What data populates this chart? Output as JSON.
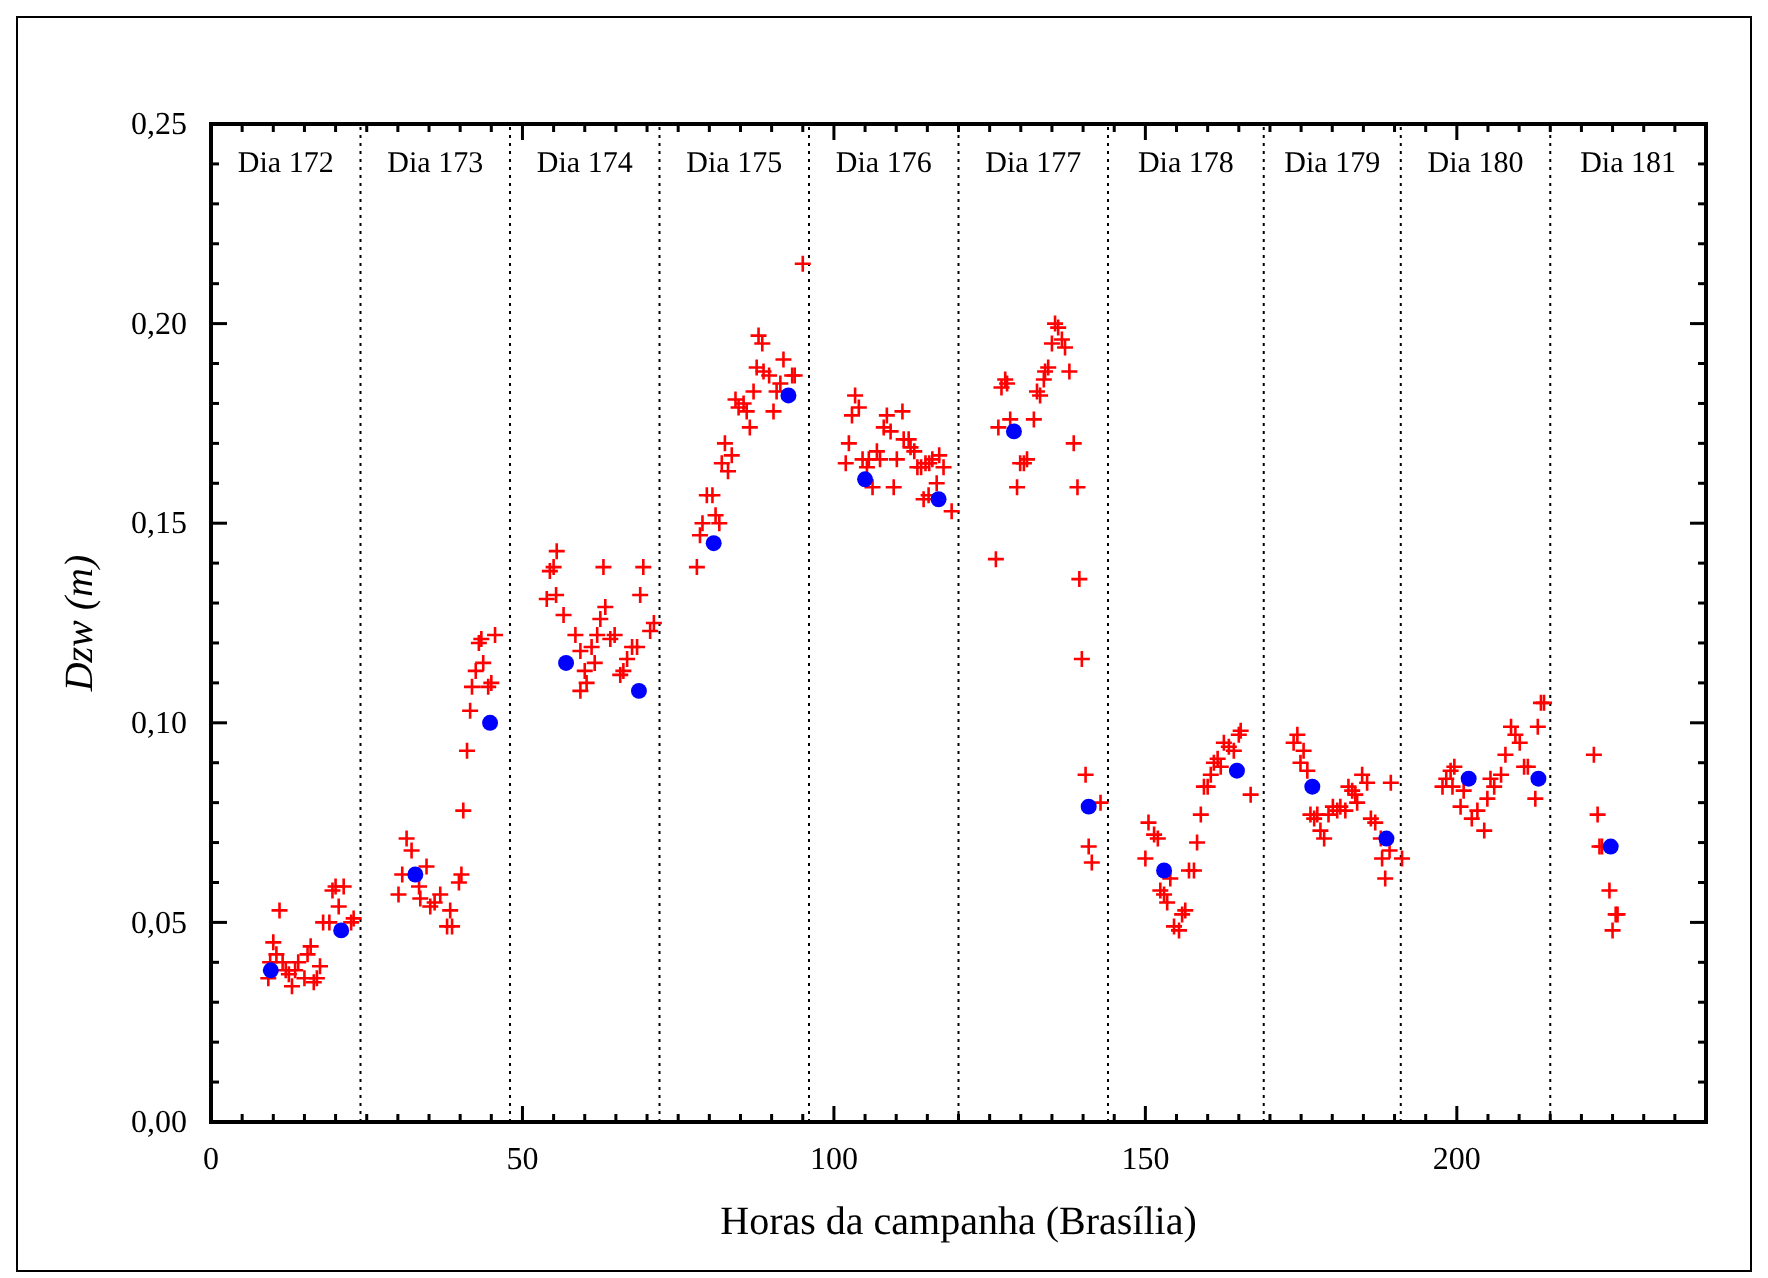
{
  "chart_data": {
    "type": "scatter",
    "xlabel": "Horas da campanha (Brasília)",
    "ylabel": "Dzw (m)",
    "xlim": [
      0,
      240
    ],
    "ylim": [
      0,
      0.25
    ],
    "xticks": [
      0,
      {
        "value": 5,
        "label": null
      },
      {
        "value": 10,
        "label": null
      },
      {
        "value": 15,
        "label": null
      },
      {
        "value": 20,
        "label": null
      },
      {
        "value": 25,
        "label": null
      },
      {
        "value": 30,
        "label": null
      },
      {
        "value": 35,
        "label": null
      },
      {
        "value": 40,
        "label": null
      },
      {
        "value": 45,
        "label": null
      },
      50,
      {
        "value": 55,
        "label": null
      },
      {
        "value": 60,
        "label": null
      },
      {
        "value": 65,
        "label": null
      },
      {
        "value": 70,
        "label": null
      },
      {
        "value": 75,
        "label": null
      },
      {
        "value": 80,
        "label": null
      },
      {
        "value": 85,
        "label": null
      },
      {
        "value": 90,
        "label": null
      },
      {
        "value": 95,
        "label": null
      },
      100,
      {
        "value": 105,
        "label": null
      },
      {
        "value": 110,
        "label": null
      },
      {
        "value": 115,
        "label": null
      },
      {
        "value": 120,
        "label": null
      },
      {
        "value": 125,
        "label": null
      },
      {
        "value": 130,
        "label": null
      },
      {
        "value": 135,
        "label": null
      },
      {
        "value": 140,
        "label": null
      },
      {
        "value": 145,
        "label": null
      },
      150,
      {
        "value": 155,
        "label": null
      },
      {
        "value": 160,
        "label": null
      },
      {
        "value": 165,
        "label": null
      },
      {
        "value": 170,
        "label": null
      },
      {
        "value": 175,
        "label": null
      },
      {
        "value": 180,
        "label": null
      },
      {
        "value": 185,
        "label": null
      },
      {
        "value": 190,
        "label": null
      },
      {
        "value": 195,
        "label": null
      },
      200,
      {
        "value": 205,
        "label": null
      },
      {
        "value": 210,
        "label": null
      },
      {
        "value": 215,
        "label": null
      },
      {
        "value": 220,
        "label": null
      },
      {
        "value": 225,
        "label": null
      },
      {
        "value": 230,
        "label": null
      },
      {
        "value": 235,
        "label": null
      },
      {
        "value": 240,
        "label": null
      }
    ],
    "yticks": [
      {
        "value": 0,
        "label": "0,00"
      },
      {
        "value": 0.01,
        "label": null
      },
      {
        "value": 0.02,
        "label": null
      },
      {
        "value": 0.03,
        "label": null
      },
      {
        "value": 0.04,
        "label": null
      },
      {
        "value": 0.05,
        "label": "0,05"
      },
      {
        "value": 0.06,
        "label": null
      },
      {
        "value": 0.07,
        "label": null
      },
      {
        "value": 0.08,
        "label": null
      },
      {
        "value": 0.09,
        "label": null
      },
      {
        "value": 0.1,
        "label": "0,10"
      },
      {
        "value": 0.11,
        "label": null
      },
      {
        "value": 0.12,
        "label": null
      },
      {
        "value": 0.13,
        "label": null
      },
      {
        "value": 0.14,
        "label": null
      },
      {
        "value": 0.15,
        "label": "0,15"
      },
      {
        "value": 0.16,
        "label": null
      },
      {
        "value": 0.17,
        "label": null
      },
      {
        "value": 0.18,
        "label": null
      },
      {
        "value": 0.19,
        "label": null
      },
      {
        "value": 0.2,
        "label": "0,20"
      },
      {
        "value": 0.21,
        "label": null
      },
      {
        "value": 0.22,
        "label": null
      },
      {
        "value": 0.23,
        "label": null
      },
      {
        "value": 0.24,
        "label": null
      },
      {
        "value": 0.25,
        "label": "0,25"
      }
    ],
    "grid": false,
    "ref_lines": [
      {
        "axis": "x",
        "value": 24,
        "line_style": "dotted"
      },
      {
        "axis": "x",
        "value": 48,
        "line_style": "dotted"
      },
      {
        "axis": "x",
        "value": 72,
        "line_style": "dotted"
      },
      {
        "axis": "x",
        "value": 96,
        "line_style": "dotted"
      },
      {
        "axis": "x",
        "value": 120,
        "line_style": "dotted"
      },
      {
        "axis": "x",
        "value": 144,
        "line_style": "dotted"
      },
      {
        "axis": "x",
        "value": 169,
        "line_style": "dotted"
      },
      {
        "axis": "x",
        "value": 191,
        "line_style": "dotted"
      },
      {
        "axis": "x",
        "value": 215,
        "line_style": "dotted"
      }
    ],
    "annotations": [
      "Dia 172",
      "Dia 173",
      "Dia 174",
      "Dia 175",
      "Dia 176",
      "Dia 177",
      "Dia 178",
      "Dia 179",
      "Dia 180",
      "Dia 181"
    ],
    "series": [
      {
        "color": "#ff0000",
        "marker": "cross",
        "x": [
          9.2,
          9.5,
          10,
          10.5,
          11,
          11.5,
          12,
          12.5,
          13,
          13.5,
          14,
          15,
          15.5,
          16,
          16.5,
          17,
          17.5,
          18,
          19,
          19.5,
          20,
          20.5,
          21.3,
          22.9,
          22.5,
          30.1,
          30.7,
          31.4,
          32.2,
          33.4,
          33.6,
          34.6,
          35.2,
          35.9,
          36.8,
          37.9,
          38.4,
          38.7,
          39.8,
          40.2,
          40.5,
          41.1,
          41.6,
          41.9,
          42.5,
          43,
          43.4,
          43.7,
          44.5,
          45,
          45.6,
          53.9,
          54.4,
          55,
          55.4,
          55.5,
          56.6,
          58.5,
          59.3,
          59.3,
          60,
          60.3,
          61.1,
          61.6,
          62,
          62.5,
          63,
          63.3,
          64.1,
          64.8,
          65.7,
          66.2,
          66.8,
          67.6,
          68.4,
          68.9,
          69.4,
          70.5,
          71.1,
          78,
          78.5,
          78.9,
          79.6,
          80.5,
          81,
          81.6,
          82,
          82.5,
          83,
          83.6,
          84.2,
          84.7,
          85.5,
          86,
          86.5,
          87.1,
          87.6,
          87.9,
          88.5,
          88.7,
          89.6,
          90.3,
          90.8,
          91.4,
          91.9,
          93.3,
          93.7,
          95,
          101.9,
          102.4,
          102.9,
          103.4,
          104,
          104.6,
          105.3,
          105.6,
          106.2,
          106.9,
          107.4,
          108,
          108.5,
          109.1,
          109.6,
          110.1,
          111,
          111.2,
          112,
          112.3,
          112.9,
          113.4,
          114,
          114.4,
          114.7,
          115.2,
          115.3,
          115.8,
          116.5,
          116.9,
          117.6,
          118.9,
          126,
          126.4,
          126.9,
          127.5,
          127.8,
          128.3,
          129.4,
          129.9,
          130.5,
          131,
          132.1,
          132.6,
          133.1,
          133.7,
          133.9,
          134.4,
          135,
          135.5,
          136,
          136.6,
          137.1,
          137.8,
          138.5,
          139.1,
          139.4,
          139.8,
          140.4,
          140.9,
          141.4,
          142.8,
          150,
          150.5,
          151.4,
          152,
          152.4,
          153,
          153.5,
          154,
          154.6,
          155.4,
          155.9,
          156.4,
          157,
          157.8,
          158.3,
          158.9,
          159.4,
          160,
          160.5,
          161,
          161.6,
          162.1,
          162.6,
          163.4,
          164.2,
          165,
          165.3,
          166.9,
          173.8,
          174.4,
          174.9,
          175.4,
          176,
          176.5,
          177.1,
          177.6,
          178.1,
          178.7,
          179.4,
          180.1,
          180.8,
          181.3,
          182.1,
          182.6,
          183.2,
          183.7,
          184,
          184.8,
          185.6,
          186.2,
          186.9,
          187.8,
          188,
          188.5,
          189.2,
          189.4,
          191.2,
          197.7,
          198.3,
          199,
          199.3,
          199.6,
          200.6,
          201.1,
          202.4,
          203.3,
          204.4,
          204.9,
          205.4,
          206,
          207.1,
          207.8,
          208.7,
          209.4,
          210.1,
          210.8,
          211.4,
          212.6,
          213,
          213.5,
          214,
          222,
          222.6,
          222.9,
          223.3,
          224.5,
          225,
          225.5,
          225.8
        ],
        "values": [
          0.036,
          0.04,
          0.045,
          0.042,
          0.053,
          0.04,
          0.038,
          0.037,
          0.034,
          0.038,
          0.04,
          0.036,
          0.042,
          0.044,
          0.035,
          0.036,
          0.039,
          0.05,
          0.05,
          0.058,
          0.059,
          0.054,
          0.059,
          0.051,
          0.05,
          0.057,
          0.062,
          0.071,
          0.068,
          0.059,
          0.056,
          0.064,
          0.054,
          0.055,
          0.057,
          0.049,
          0.053,
          0.049,
          0.06,
          0.062,
          0.078,
          0.093,
          0.103,
          0.109,
          0.113,
          0.12,
          0.121,
          0.115,
          0.109,
          0.11,
          0.122,
          0.131,
          0.138,
          0.139,
          0.132,
          0.143,
          0.127,
          0.122,
          0.118,
          0.108,
          0.113,
          0.11,
          0.119,
          0.115,
          0.122,
          0.126,
          0.139,
          0.129,
          0.121,
          0.122,
          0.112,
          0.113,
          0.116,
          0.119,
          0.119,
          0.132,
          0.139,
          0.123,
          0.125,
          0.139,
          0.147,
          0.15,
          0.157,
          0.157,
          0.152,
          0.15,
          0.165,
          0.17,
          0.163,
          0.167,
          0.181,
          0.179,
          0.18,
          0.178,
          0.174,
          0.183,
          0.189,
          0.197,
          0.195,
          0.188,
          0.187,
          0.178,
          0.183,
          0.185,
          0.191,
          0.187,
          0.187,
          0.215,
          0.165,
          0.17,
          0.177,
          0.182,
          0.179,
          0.166,
          0.164,
          0.166,
          0.159,
          0.168,
          0.166,
          0.174,
          0.177,
          0.173,
          0.159,
          0.166,
          0.178,
          0.171,
          0.171,
          0.169,
          0.168,
          0.164,
          0.164,
          0.156,
          0.165,
          0.157,
          0.165,
          0.166,
          0.16,
          0.167,
          0.164,
          0.153,
          0.141,
          0.174,
          0.184,
          0.186,
          0.185,
          0.176,
          0.159,
          0.165,
          0.165,
          0.166,
          0.176,
          0.183,
          0.182,
          0.186,
          0.188,
          0.189,
          0.195,
          0.2,
          0.199,
          0.196,
          0.194,
          0.188,
          0.17,
          0.159,
          0.136,
          0.116,
          0.087,
          0.069,
          0.065,
          0.08,
          0.066,
          0.075,
          0.072,
          0.071,
          0.058,
          0.057,
          0.055,
          0.061,
          0.049,
          0.048,
          0.052,
          0.053,
          0.063,
          0.063,
          0.07,
          0.077,
          0.084,
          0.084,
          0.087,
          0.09,
          0.091,
          0.089,
          0.095,
          0.094,
          0.093,
          0.097,
          0.098,
          0.082,
          0.095,
          0.097,
          0.09,
          0.093,
          0.088,
          0.077,
          0.076,
          0.077,
          0.073,
          0.071,
          0.077,
          0.079,
          0.078,
          0.079,
          0.078,
          0.084,
          0.083,
          0.082,
          0.08,
          0.087,
          0.085,
          0.076,
          0.075,
          0.071,
          0.066,
          0.061,
          0.068,
          0.085,
          0.066,
          0.084,
          0.086,
          0.088,
          0.084,
          0.089,
          0.079,
          0.083,
          0.076,
          0.078,
          0.073,
          0.081,
          0.086,
          0.084,
          0.087,
          0.092,
          0.099,
          0.097,
          0.095,
          0.089,
          0.089,
          0.081,
          0.099,
          0.105,
          0.105,
          0.092,
          0.077,
          0.069,
          0.069,
          0.058,
          0.048,
          0.052,
          0.052
        ]
      },
      {
        "color": "#0000ff",
        "marker": "circle",
        "x": [
          9.6,
          20.9,
          32.8,
          44.8,
          57,
          68.7,
          80.7,
          92.7,
          105,
          116.8,
          128.9,
          140.9,
          153,
          164.7,
          176.8,
          188.7,
          201.9,
          213.1,
          224.7
        ],
        "values": [
          0.038,
          0.048,
          0.062,
          0.1,
          0.115,
          0.108,
          0.145,
          0.182,
          0.161,
          0.156,
          0.173,
          0.079,
          0.063,
          0.088,
          0.084,
          0.071,
          0.086,
          0.086,
          0.069
        ]
      }
    ]
  }
}
